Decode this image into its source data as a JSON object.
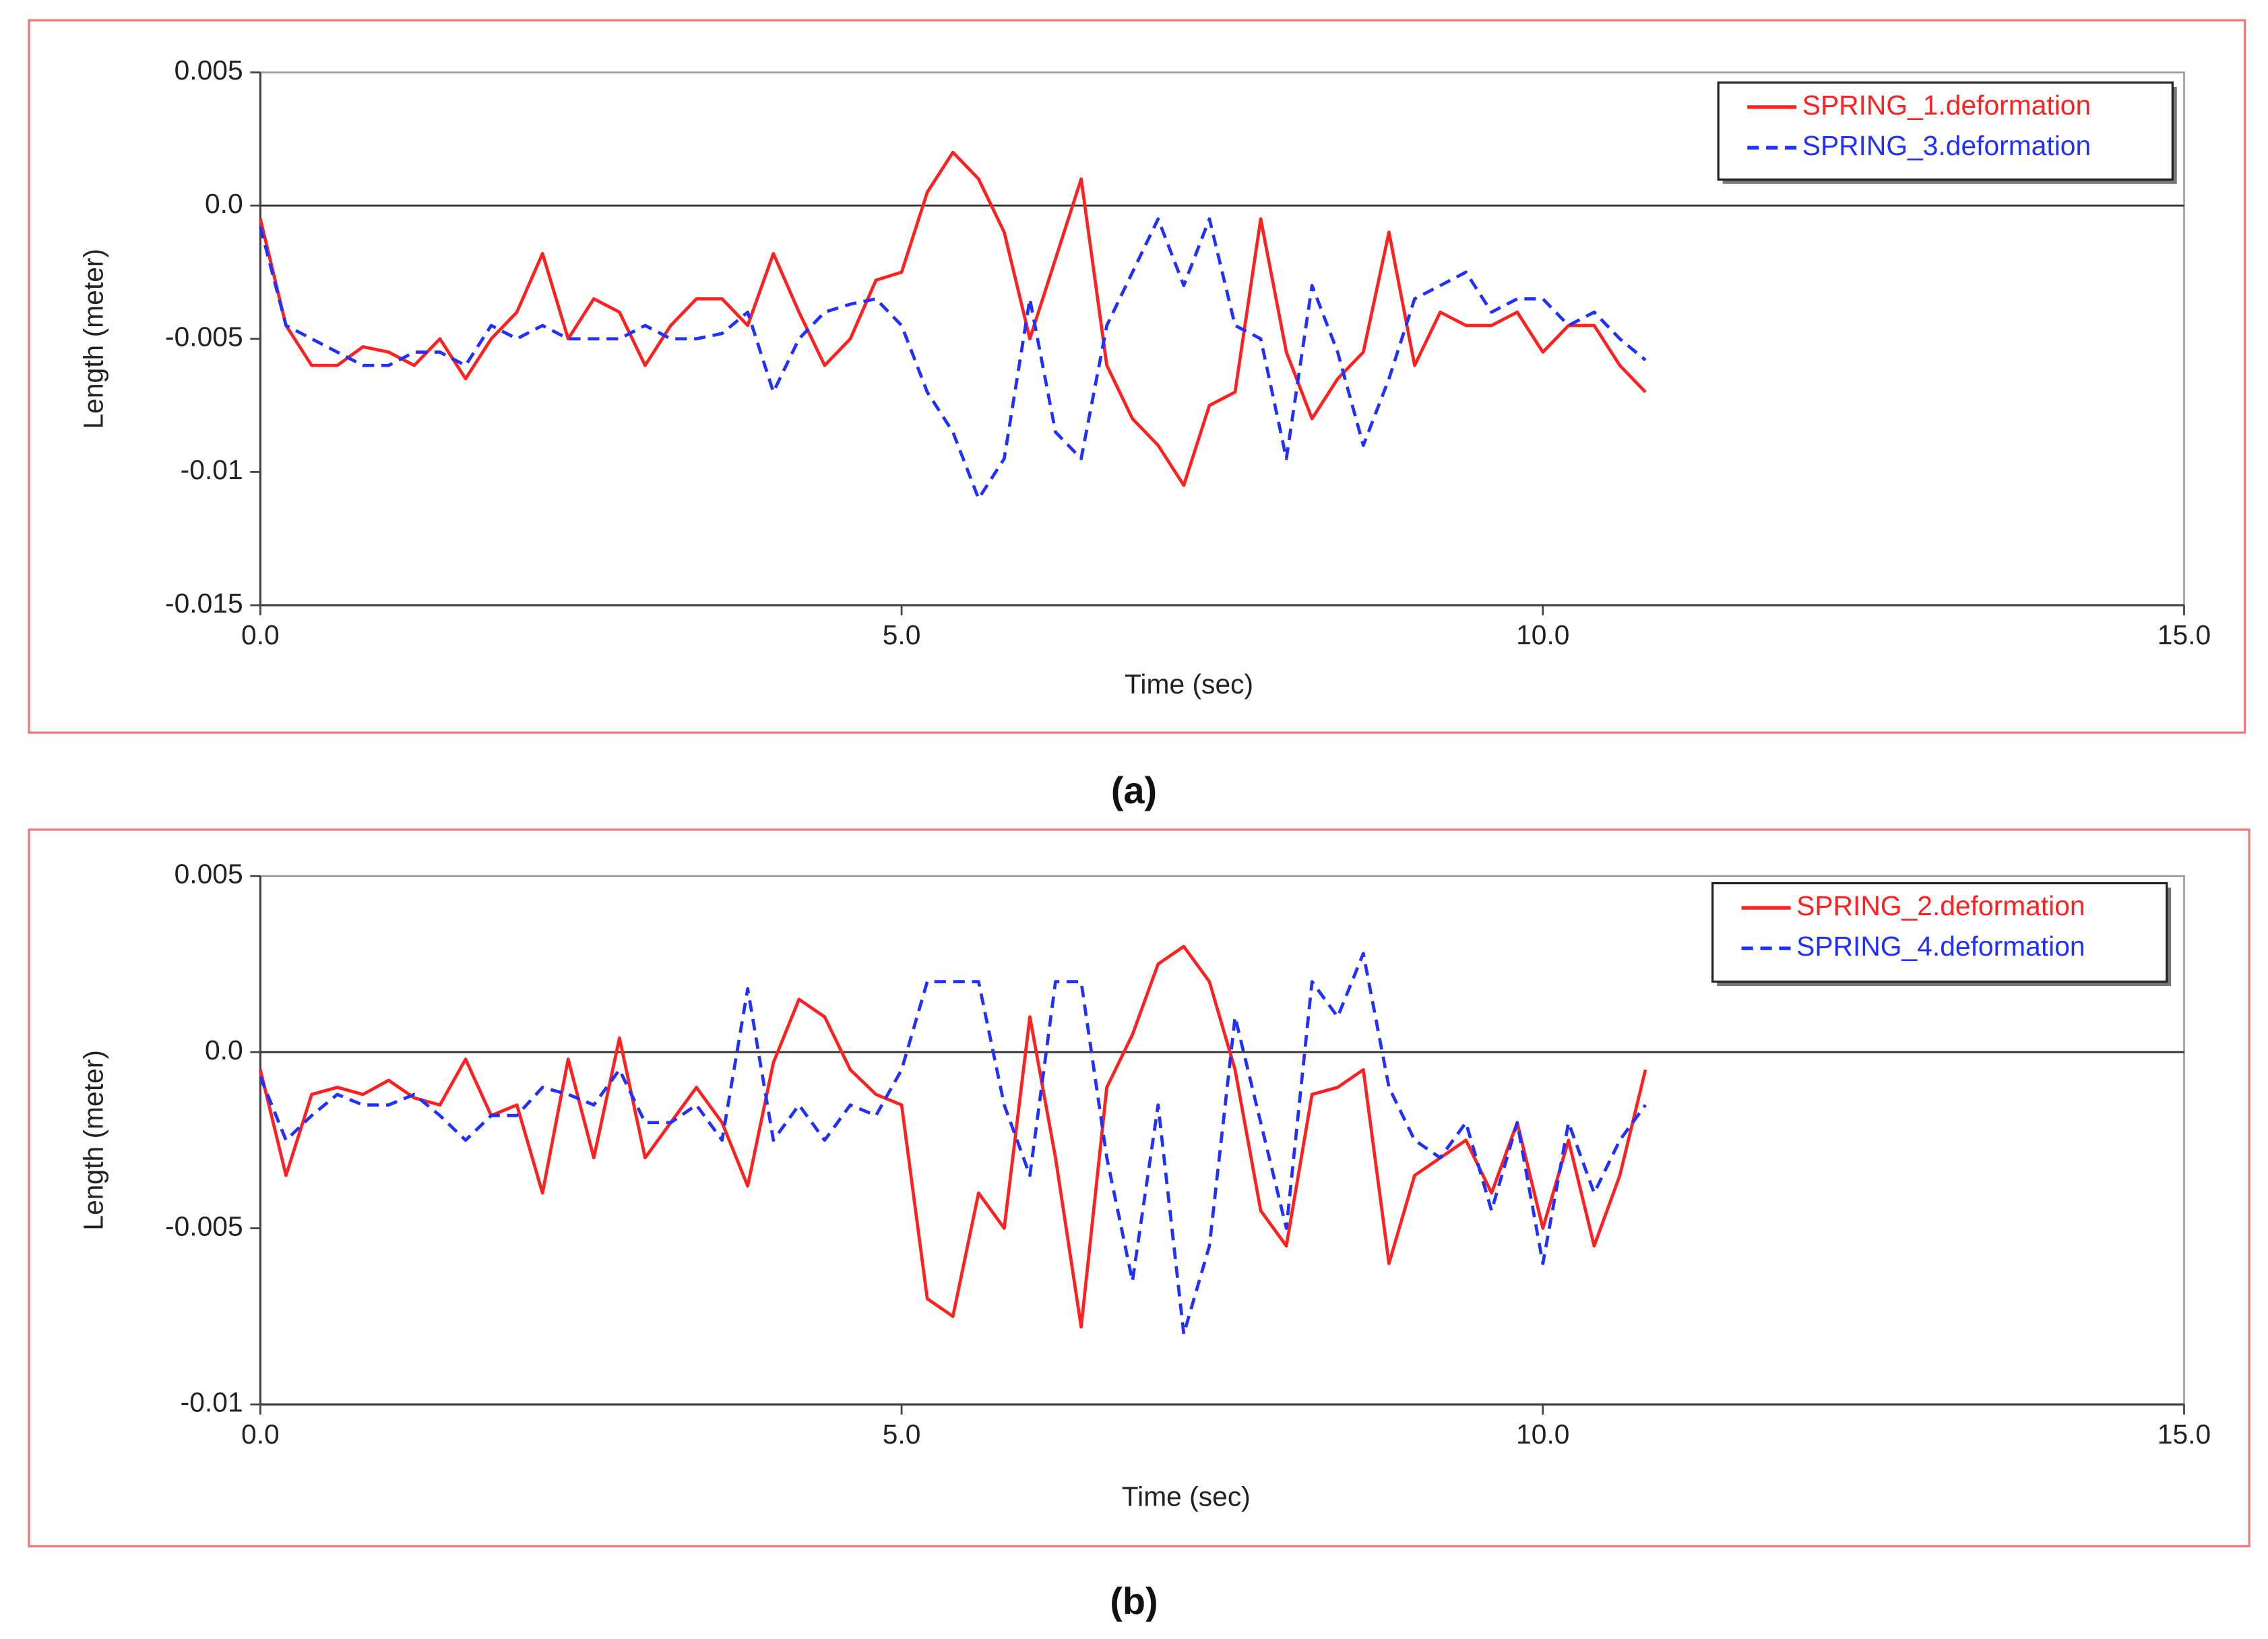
{
  "chart_data": [
    {
      "type": "line",
      "caption": "(a)",
      "xlabel": "Time (sec)",
      "ylabel": "Length (meter)",
      "xlim": [
        0,
        15
      ],
      "xticks": [
        {
          "value": 0,
          "label": "0.0"
        },
        {
          "value": 5,
          "label": "5.0"
        },
        {
          "value": 10,
          "label": "10.0"
        },
        {
          "value": 15,
          "label": "15.0"
        }
      ],
      "ylim": [
        -0.015,
        0.005
      ],
      "yticks": [
        0.005,
        {
          "value": 0,
          "label": "0.0"
        },
        -0.005,
        -0.01,
        -0.015
      ],
      "zero_line": true,
      "legend": "upper right",
      "x": [
        0,
        0.2,
        0.4,
        0.6,
        0.8,
        1.0,
        1.2,
        1.4,
        1.6,
        1.8,
        2.0,
        2.2,
        2.4,
        2.6,
        2.8,
        3.0,
        3.2,
        3.4,
        3.6,
        3.8,
        4.0,
        4.2,
        4.4,
        4.6,
        4.8,
        5.0,
        5.2,
        5.4,
        5.6,
        5.8,
        6.0,
        6.2,
        6.4,
        6.6,
        6.8,
        7.0,
        7.2,
        7.4,
        7.6,
        7.8,
        8.0,
        8.2,
        8.4,
        8.6,
        8.8,
        9.0,
        9.2,
        9.4,
        9.6,
        9.8,
        10.0,
        10.2,
        10.4,
        10.6,
        10.8
      ],
      "series": [
        {
          "name": "SPRING_1.deformation",
          "color": "#ff2020",
          "dash": "solid",
          "values": [
            -0.0005,
            -0.0045,
            -0.006,
            -0.006,
            -0.0053,
            -0.0055,
            -0.006,
            -0.005,
            -0.0065,
            -0.005,
            -0.004,
            -0.0018,
            -0.005,
            -0.0035,
            -0.004,
            -0.006,
            -0.0045,
            -0.0035,
            -0.0035,
            -0.0045,
            -0.0018,
            -0.004,
            -0.006,
            -0.005,
            -0.0028,
            -0.0025,
            0.0005,
            0.002,
            0.001,
            -0.001,
            -0.005,
            -0.002,
            0.001,
            -0.006,
            -0.008,
            -0.009,
            -0.0105,
            -0.0075,
            -0.007,
            -0.0005,
            -0.0055,
            -0.008,
            -0.0065,
            -0.0055,
            -0.001,
            -0.006,
            -0.004,
            -0.0045,
            -0.0045,
            -0.004,
            -0.0055,
            -0.0045,
            -0.0045,
            -0.006,
            -0.007
          ]
        },
        {
          "name": "SPRING_3.deformation",
          "color": "#2030ff",
          "dash": "dashed",
          "values": [
            -0.0008,
            -0.0045,
            -0.005,
            -0.0055,
            -0.006,
            -0.006,
            -0.0055,
            -0.0055,
            -0.006,
            -0.0045,
            -0.005,
            -0.0045,
            -0.005,
            -0.005,
            -0.005,
            -0.0045,
            -0.005,
            -0.005,
            -0.0048,
            -0.004,
            -0.007,
            -0.005,
            -0.004,
            -0.0037,
            -0.0035,
            -0.0045,
            -0.007,
            -0.0085,
            -0.011,
            -0.0095,
            -0.0035,
            -0.0085,
            -0.0095,
            -0.0045,
            -0.0025,
            -0.0005,
            -0.003,
            -0.0005,
            -0.0045,
            -0.005,
            -0.0095,
            -0.003,
            -0.0055,
            -0.009,
            -0.0065,
            -0.0035,
            -0.003,
            -0.0025,
            -0.004,
            -0.0035,
            -0.0035,
            -0.0045,
            -0.004,
            -0.005,
            -0.0058
          ]
        }
      ]
    },
    {
      "type": "line",
      "caption": "(b)",
      "xlabel": "Time (sec)",
      "ylabel": "Length (meter)",
      "xlim": [
        0,
        15
      ],
      "xticks": [
        {
          "value": 0,
          "label": "0.0"
        },
        {
          "value": 5,
          "label": "5.0"
        },
        {
          "value": 10,
          "label": "10.0"
        },
        {
          "value": 15,
          "label": "15.0"
        }
      ],
      "ylim": [
        -0.01,
        0.005
      ],
      "yticks": [
        0.005,
        {
          "value": 0,
          "label": "0.0"
        },
        -0.005,
        -0.01
      ],
      "zero_line": true,
      "legend": "upper right",
      "x": [
        0,
        0.2,
        0.4,
        0.6,
        0.8,
        1.0,
        1.2,
        1.4,
        1.6,
        1.8,
        2.0,
        2.2,
        2.4,
        2.6,
        2.8,
        3.0,
        3.2,
        3.4,
        3.6,
        3.8,
        4.0,
        4.2,
        4.4,
        4.6,
        4.8,
        5.0,
        5.2,
        5.4,
        5.6,
        5.8,
        6.0,
        6.2,
        6.4,
        6.6,
        6.8,
        7.0,
        7.2,
        7.4,
        7.6,
        7.8,
        8.0,
        8.2,
        8.4,
        8.6,
        8.8,
        9.0,
        9.2,
        9.4,
        9.6,
        9.8,
        10.0,
        10.2,
        10.4,
        10.6,
        10.8
      ],
      "series": [
        {
          "name": "SPRING_2.deformation",
          "color": "#ff2020",
          "dash": "solid",
          "values": [
            -0.0005,
            -0.0035,
            -0.0012,
            -0.001,
            -0.0012,
            -0.0008,
            -0.0013,
            -0.0015,
            -0.0002,
            -0.0018,
            -0.0015,
            -0.004,
            -0.0002,
            -0.003,
            0.0004,
            -0.003,
            -0.002,
            -0.001,
            -0.002,
            -0.0038,
            -0.0003,
            0.0015,
            0.001,
            -0.0005,
            -0.0012,
            -0.0015,
            -0.007,
            -0.0075,
            -0.004,
            -0.005,
            0.001,
            -0.003,
            -0.0078,
            -0.001,
            0.0005,
            0.0025,
            0.003,
            0.002,
            -0.0005,
            -0.0045,
            -0.0055,
            -0.0012,
            -0.001,
            -0.0005,
            -0.006,
            -0.0035,
            -0.003,
            -0.0025,
            -0.004,
            -0.002,
            -0.005,
            -0.0025,
            -0.0055,
            -0.0035,
            -0.0005
          ]
        },
        {
          "name": "SPRING_4.deformation",
          "color": "#2030ff",
          "dash": "dashed",
          "values": [
            -0.0007,
            -0.0025,
            -0.0018,
            -0.0012,
            -0.0015,
            -0.0015,
            -0.0012,
            -0.0018,
            -0.0025,
            -0.0018,
            -0.0018,
            -0.001,
            -0.0012,
            -0.0015,
            -0.0005,
            -0.002,
            -0.002,
            -0.0015,
            -0.0025,
            0.0018,
            -0.0025,
            -0.0015,
            -0.0025,
            -0.0015,
            -0.0018,
            -0.0005,
            0.002,
            0.002,
            0.002,
            -0.0015,
            -0.0035,
            0.002,
            0.002,
            -0.003,
            -0.0065,
            -0.0015,
            -0.008,
            -0.0055,
            0.001,
            -0.002,
            -0.005,
            0.002,
            0.001,
            0.0028,
            -0.001,
            -0.0025,
            -0.003,
            -0.002,
            -0.0045,
            -0.002,
            -0.006,
            -0.002,
            -0.004,
            -0.0025,
            -0.0015
          ]
        }
      ]
    }
  ]
}
